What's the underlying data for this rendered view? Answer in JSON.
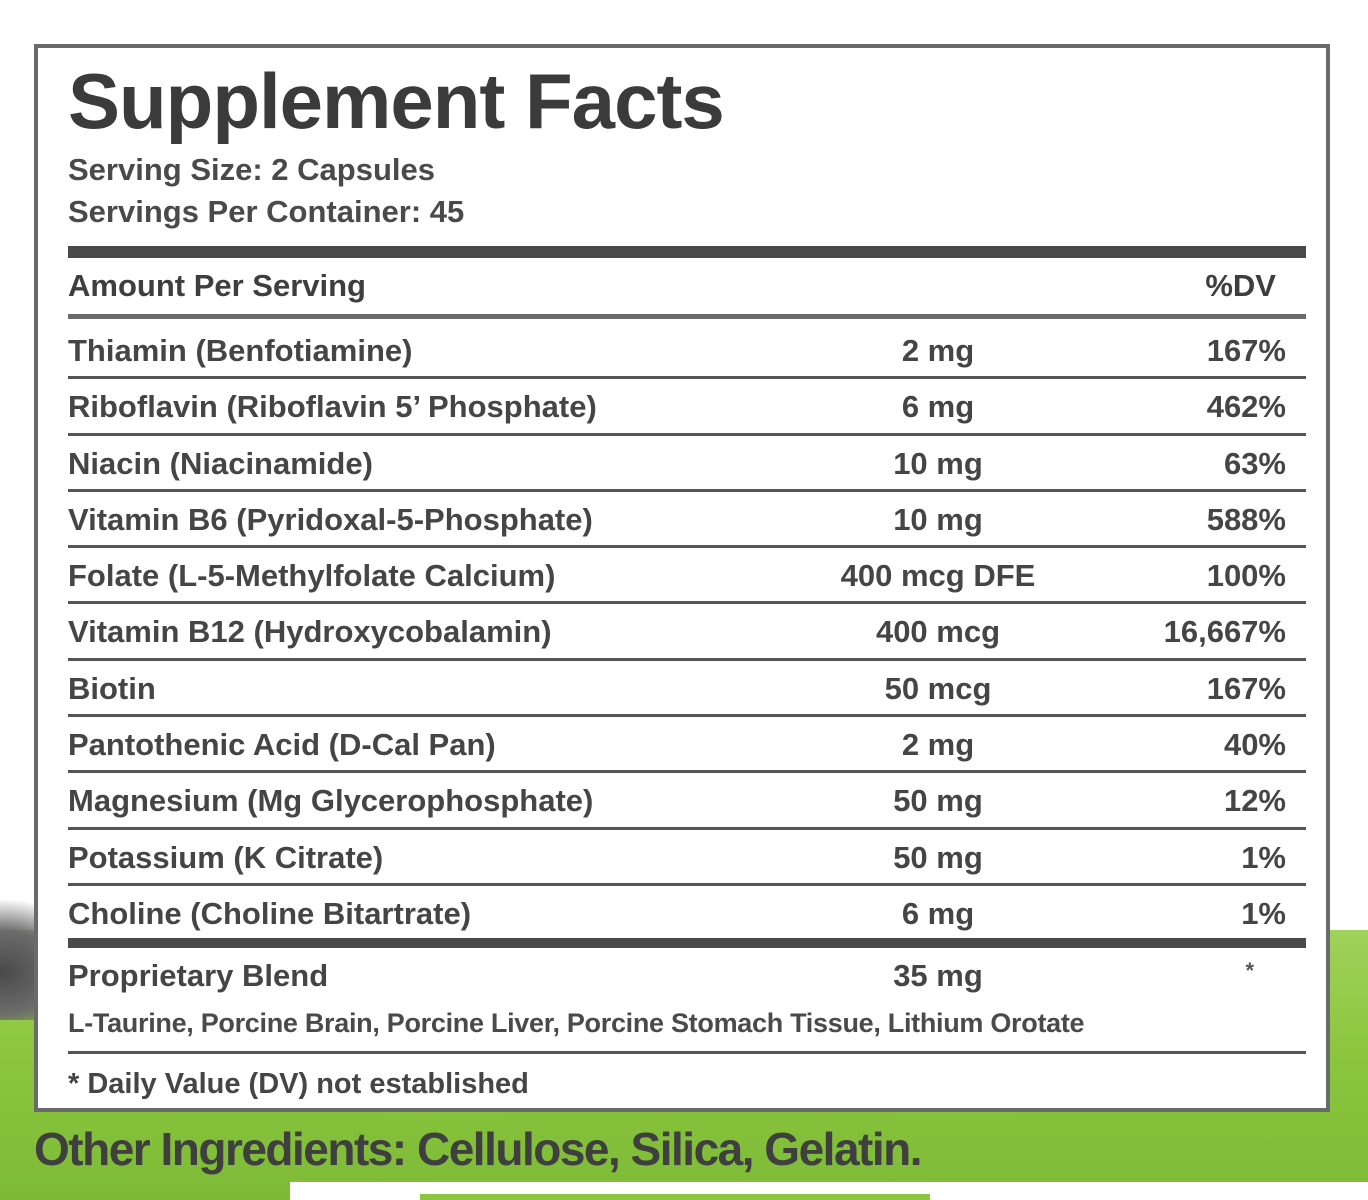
{
  "colors": {
    "background_green": "#8cc63f",
    "text_dark": "#3b3b3b",
    "border": "#6a6a6a"
  },
  "label": {
    "title": "Supplement Facts",
    "serving_size": "Serving Size: 2 Capsules",
    "servings_per_container": "Servings Per Container: 45",
    "header": {
      "amount_per_serving": "Amount Per Serving",
      "dv": "%DV"
    },
    "nutrients": [
      {
        "name": "Thiamin (Benfotiamine)",
        "amount": "2 mg",
        "dv": "167%"
      },
      {
        "name": "Riboflavin (Riboflavin 5’ Phosphate)",
        "amount": "6 mg",
        "dv": "462%"
      },
      {
        "name": "Niacin (Niacinamide)",
        "amount": "10 mg",
        "dv": "63%"
      },
      {
        "name": "Vitamin B6 (Pyridoxal-5-Phosphate)",
        "amount": "10 mg",
        "dv": "588%"
      },
      {
        "name": "Folate (L-5-Methylfolate Calcium)",
        "amount": "400 mcg DFE",
        "dv": "100%"
      },
      {
        "name": "Vitamin B12 (Hydroxycobalamin)",
        "amount": "400 mcg",
        "dv": "16,667%"
      },
      {
        "name": "Biotin",
        "amount": "50 mcg",
        "dv": "167%"
      },
      {
        "name": "Pantothenic Acid (D-Cal Pan)",
        "amount": "2 mg",
        "dv": "40%"
      },
      {
        "name": "Magnesium (Mg Glycerophosphate)",
        "amount": "50 mg",
        "dv": "12%"
      },
      {
        "name": "Potassium (K Citrate)",
        "amount": "50 mg",
        "dv": "1%"
      },
      {
        "name": "Choline (Choline Bitartrate)",
        "amount": "6 mg",
        "dv": "1%"
      }
    ],
    "proprietary_blend": {
      "name": "Proprietary Blend",
      "amount": "35 mg",
      "dv": "*",
      "ingredients": "L-Taurine, Porcine Brain, Porcine Liver, Porcine Stomach Tissue, Lithium Orotate"
    },
    "footnote": "* Daily Value (DV) not established"
  },
  "other_ingredients": "Other Ingredients: Cellulose, Silica, Gelatin."
}
